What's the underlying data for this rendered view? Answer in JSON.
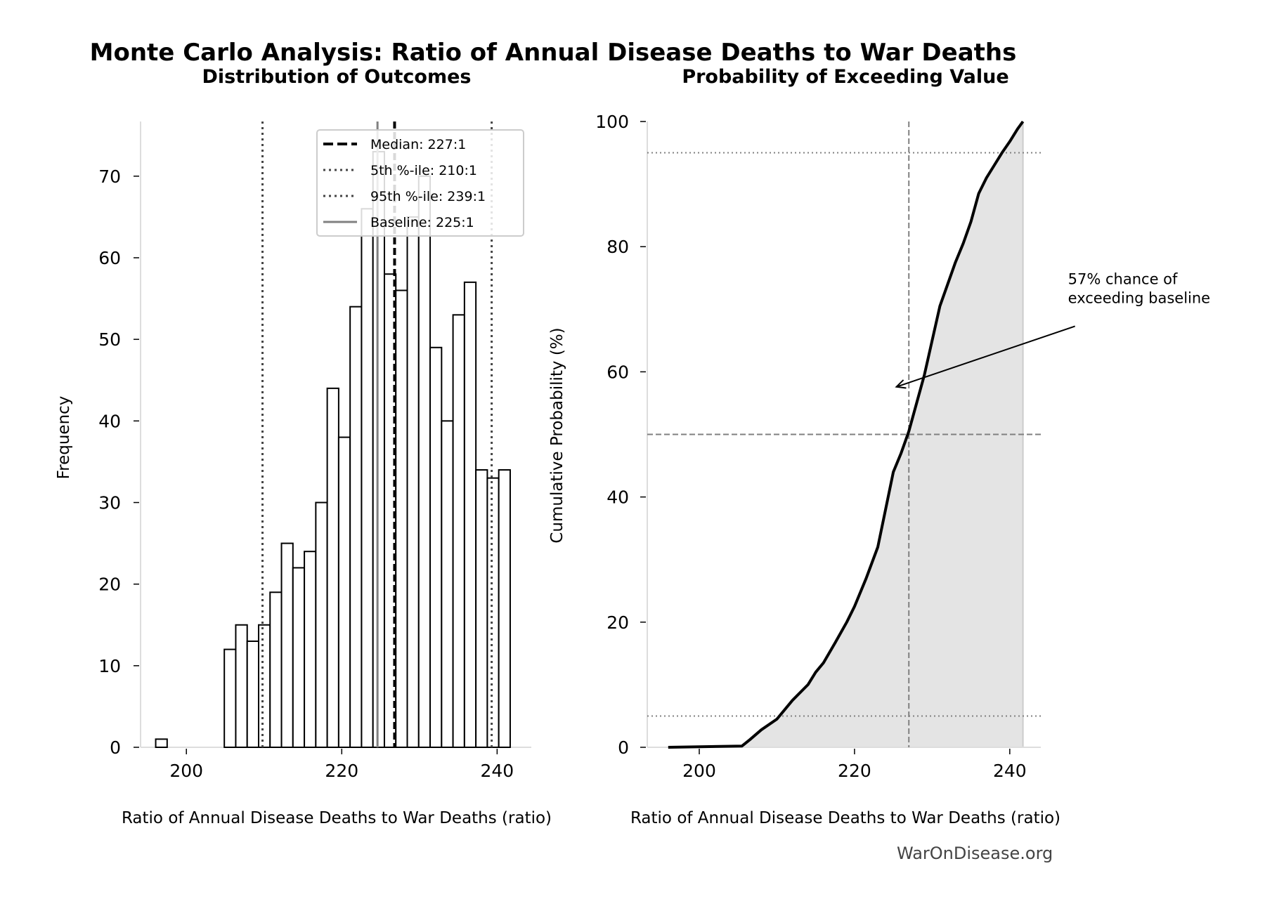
{
  "title": "Monte Carlo Analysis: Ratio of Annual Disease Deaths to War Deaths",
  "watermark": "WarOnDisease.org",
  "chart_data": [
    {
      "type": "bar",
      "subtype": "histogram",
      "title": "Distribution of Outcomes",
      "xlabel": "Ratio of Annual Disease Deaths to War Deaths (ratio)",
      "ylabel": "Frequency",
      "xlim": [
        194.1,
        244.4
      ],
      "ylim": [
        0,
        76.7
      ],
      "xticks": [
        200,
        220,
        240
      ],
      "yticks": [
        0,
        10,
        20,
        30,
        40,
        50,
        60,
        70
      ],
      "bin_start": 196.05,
      "bin_width": 1.472,
      "counts": [
        1,
        0,
        0,
        0,
        0,
        0,
        12,
        15,
        13,
        15,
        19,
        25,
        22,
        24,
        30,
        44,
        38,
        54,
        66,
        73,
        58,
        56,
        65,
        70,
        49,
        40,
        53,
        57,
        34,
        33,
        34
      ],
      "bar_fill": "#ffffff",
      "bar_edge": "#000000",
      "grid": false,
      "legend_position": "top-right",
      "reference_lines": [
        {
          "label": "Median: 227:1",
          "value": 226.8,
          "style": "dashed",
          "color": "#000000"
        },
        {
          "label": "5th %-ile: 210:1",
          "value": 209.8,
          "style": "dotted",
          "color": "#444444"
        },
        {
          "label": "95th %-ile: 239:1",
          "value": 239.3,
          "style": "dotted",
          "color": "#444444"
        },
        {
          "label": "Baseline: 225:1",
          "value": 224.6,
          "style": "solid",
          "color": "#808080"
        }
      ]
    },
    {
      "type": "area",
      "subtype": "cumulative-distribution",
      "title": "Probability of Exceeding Value",
      "xlabel": "Ratio of Annual Disease Deaths to War Deaths (ratio)",
      "ylabel": "Cumulative Probability (%)",
      "xlim": [
        193.3,
        244.0
      ],
      "ylim": [
        0,
        100
      ],
      "xticks": [
        200,
        220,
        240
      ],
      "yticks": [
        0,
        20,
        40,
        60,
        80,
        100
      ],
      "grid": false,
      "line_color": "#000000",
      "fill_color": "#e4e4e4",
      "x": [
        196.0,
        205.5,
        206.5,
        208,
        210,
        212,
        214,
        215,
        216,
        217.5,
        219,
        220,
        221.5,
        223,
        224,
        225,
        226,
        227,
        228,
        229,
        230,
        231,
        232,
        233,
        234,
        235,
        236,
        237,
        238,
        239,
        240,
        241,
        241.7
      ],
      "y": [
        0,
        0.2,
        1.2,
        2.8,
        4.5,
        7.5,
        10,
        12,
        13.5,
        16.7,
        20,
        22.5,
        27,
        32,
        38,
        44,
        47,
        50.5,
        55,
        59.5,
        65,
        70.5,
        74,
        77.5,
        80.5,
        84,
        88.5,
        91,
        93,
        95,
        96.8,
        98.8,
        100
      ],
      "reference_lines": [
        {
          "axis": "y",
          "value": 5,
          "style": "dotted",
          "color": "#808080"
        },
        {
          "axis": "y",
          "value": 95,
          "style": "dotted",
          "color": "#808080"
        },
        {
          "axis": "y",
          "value": 50,
          "style": "dashed",
          "color": "#808080"
        },
        {
          "axis": "x",
          "value": 227,
          "style": "dashed",
          "color": "#808080"
        }
      ],
      "annotation": {
        "lines": [
          "57% chance of",
          "exceeding baseline"
        ],
        "arrow_to": [
          225.4,
          57.6
        ],
        "text_at": [
          247.5,
          72
        ]
      }
    }
  ]
}
